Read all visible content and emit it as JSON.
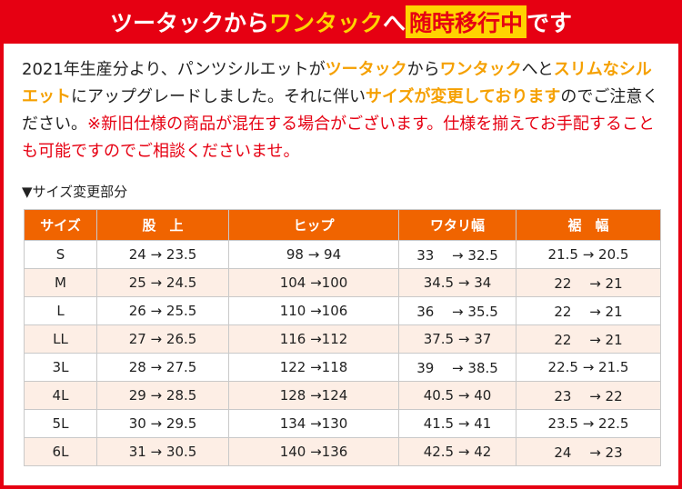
{
  "banner": {
    "part1": "ツータックから",
    "part2": "ワンタック",
    "part3": "へ",
    "part4": "随時移行中",
    "part5": "です"
  },
  "intro": {
    "t1": "2021年生産分より、パンツシルエットが",
    "t2": "ツータック",
    "t3": "から",
    "t4": "ワンタック",
    "t5": "へと",
    "t6": "スリムなシルエット",
    "t7": "にアップグレードしました。それに伴い",
    "t8": "サイズが変更しております",
    "t9": "のでご注意ください。",
    "t10": "※新旧仕様の商品が混在する場合がございます。仕様を揃えてお手配することも可能ですのでご相談くださいませ。"
  },
  "section_label": "▼サイズ変更部分",
  "table": {
    "headers": [
      "サイズ",
      "股　上",
      "ヒップ",
      "ワタリ幅",
      "裾　幅"
    ],
    "rows": [
      [
        "S",
        "24 → 23.5",
        "98 →  94",
        "33　 → 32.5",
        "21.5 → 20.5"
      ],
      [
        "M",
        "25 → 24.5",
        "104 →100",
        "34.5 → 34",
        "22　 → 21"
      ],
      [
        "L",
        "26 → 25.5",
        "110 →106",
        "36　 → 35.5",
        "22　 → 21"
      ],
      [
        "LL",
        "27 → 26.5",
        "116 →112",
        "37.5 → 37",
        "22　 → 21"
      ],
      [
        "3L",
        "28 → 27.5",
        "122 →118",
        "39　 → 38.5",
        "22.5 → 21.5"
      ],
      [
        "4L",
        "29 → 28.5",
        "128 →124",
        "40.5 → 40",
        "23　 → 22"
      ],
      [
        "5L",
        "30 → 29.5",
        "134 →130",
        "41.5 → 41",
        "23.5 → 22.5"
      ],
      [
        "6L",
        "31 → 30.5",
        "140 →136",
        "42.5 → 42",
        "24　 → 23"
      ]
    ]
  },
  "colors": {
    "brand_red": "#e60012",
    "accent_yellow": "#ffd400",
    "accent_orange": "#f5a000",
    "header_orange": "#f06400",
    "row_stripe": "#fdeee5"
  }
}
